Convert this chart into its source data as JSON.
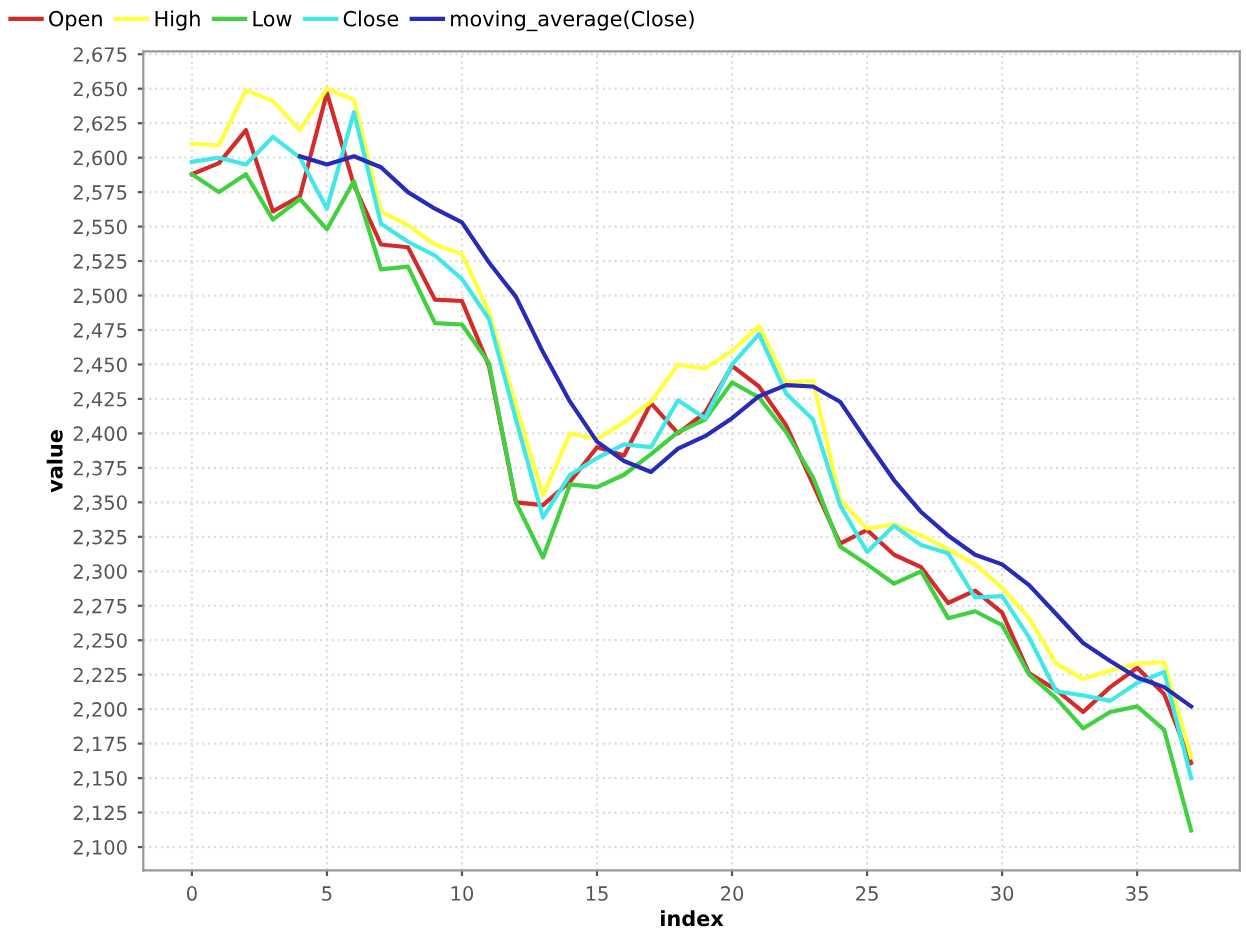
{
  "chart_data": {
    "type": "line",
    "xlabel": "index",
    "ylabel": "value",
    "x": [
      0,
      1,
      2,
      3,
      4,
      5,
      6,
      7,
      8,
      9,
      10,
      11,
      12,
      13,
      14,
      15,
      16,
      17,
      18,
      19,
      20,
      21,
      22,
      23,
      24,
      25,
      26,
      27,
      28,
      29,
      30,
      31,
      32,
      33,
      34,
      35,
      36,
      37
    ],
    "series": [
      {
        "name": "Open",
        "color": "#d42a2a",
        "values": [
          2588,
          2596,
          2620,
          2561,
          2572,
          2647,
          2580,
          2537,
          2535,
          2497,
          2496,
          2449,
          2350,
          2348,
          2365,
          2390,
          2384,
          2422,
          2400,
          2415,
          2449,
          2434,
          2406,
          2363,
          2320,
          2330,
          2312,
          2303,
          2277,
          2286,
          2270,
          2226,
          2214,
          2198,
          2216,
          2230,
          2211,
          2161
        ]
      },
      {
        "name": "High",
        "color": "#ffff40",
        "values": [
          2610,
          2609,
          2649,
          2641,
          2620,
          2650,
          2642,
          2561,
          2551,
          2537,
          2530,
          2488,
          2420,
          2355,
          2400,
          2396,
          2408,
          2423,
          2450,
          2447,
          2460,
          2478,
          2437,
          2438,
          2352,
          2331,
          2334,
          2326,
          2316,
          2305,
          2288,
          2266,
          2233,
          2222,
          2228,
          2233,
          2234,
          2165
        ]
      },
      {
        "name": "Low",
        "color": "#40d040",
        "values": [
          2588,
          2575,
          2588,
          2555,
          2570,
          2548,
          2583,
          2519,
          2521,
          2480,
          2479,
          2451,
          2350,
          2310,
          2363,
          2361,
          2370,
          2385,
          2401,
          2410,
          2437,
          2426,
          2401,
          2368,
          2318,
          2305,
          2291,
          2300,
          2266,
          2271,
          2261,
          2225,
          2208,
          2186,
          2198,
          2202,
          2185,
          2112
        ]
      },
      {
        "name": "Close",
        "color": "#40e8e8",
        "values": [
          2597,
          2600,
          2595,
          2615,
          2600,
          2563,
          2633,
          2552,
          2539,
          2529,
          2512,
          2483,
          2410,
          2339,
          2370,
          2382,
          2392,
          2390,
          2424,
          2411,
          2450,
          2472,
          2429,
          2410,
          2348,
          2314,
          2333,
          2319,
          2313,
          2281,
          2282,
          2252,
          2213,
          2210,
          2206,
          2219,
          2227,
          2150
        ]
      },
      {
        "name": "moving_average(Close)",
        "color": "#2a2ab8",
        "values": [
          null,
          null,
          null,
          null,
          2601,
          2595,
          2601,
          2593,
          2575,
          2563,
          2553,
          2524,
          2499,
          2459,
          2423,
          2394,
          2380,
          2372,
          2389,
          2398,
          2411,
          2427,
          2435,
          2434,
          2423,
          2394,
          2366,
          2343,
          2326,
          2312,
          2305,
          2290,
          2269,
          2248,
          2235,
          2223,
          2216,
          2202
        ]
      }
    ],
    "xlim": [
      -1.8,
      38.8
    ],
    "ylim": [
      2083,
      2677
    ],
    "xticks": [
      0,
      5,
      10,
      15,
      20,
      25,
      30,
      35
    ],
    "yticks": [
      {
        "value": 2100,
        "label": "2,100"
      },
      {
        "value": 2125,
        "label": "2,125"
      },
      {
        "value": 2150,
        "label": "2,150"
      },
      {
        "value": 2175,
        "label": "2,175"
      },
      {
        "value": 2200,
        "label": "2,200"
      },
      {
        "value": 2225,
        "label": "2,225"
      },
      {
        "value": 2250,
        "label": "2,250"
      },
      {
        "value": 2275,
        "label": "2,275"
      },
      {
        "value": 2300,
        "label": "2,300"
      },
      {
        "value": 2325,
        "label": "2,325"
      },
      {
        "value": 2350,
        "label": "2,350"
      },
      {
        "value": 2375,
        "label": "2,375"
      },
      {
        "value": 2400,
        "label": "2,400"
      },
      {
        "value": 2425,
        "label": "2,425"
      },
      {
        "value": 2450,
        "label": "2,450"
      },
      {
        "value": 2475,
        "label": "2,475"
      },
      {
        "value": 2500,
        "label": "2,500"
      },
      {
        "value": 2525,
        "label": "2,525"
      },
      {
        "value": 2550,
        "label": "2,550"
      },
      {
        "value": 2575,
        "label": "2,575"
      },
      {
        "value": 2600,
        "label": "2,600"
      },
      {
        "value": 2625,
        "label": "2,625"
      },
      {
        "value": 2650,
        "label": "2,650"
      },
      {
        "value": 2675,
        "label": "2,675"
      }
    ],
    "grid": true,
    "legend": "top left",
    "marker": "none",
    "line_style": "solid"
  }
}
